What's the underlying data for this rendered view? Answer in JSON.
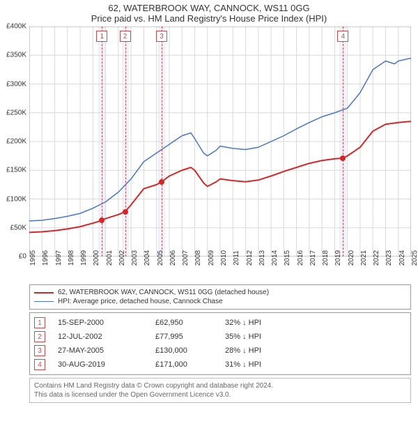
{
  "title1": "62, WATERBROOK WAY, CANNOCK, WS11 0GG",
  "title2": "Price paid vs. HM Land Registry's House Price Index (HPI)",
  "chart": {
    "type": "line",
    "background_color": "#ffffff",
    "grid_color": "#d9d9d9",
    "axis_color": "#999999",
    "label_fontsize": 10,
    "y_axis": {
      "min": 0,
      "max": 400000,
      "tick_step": 50000,
      "ticks": [
        "£0",
        "£50K",
        "£100K",
        "£150K",
        "£200K",
        "£250K",
        "£300K",
        "£350K",
        "£400K"
      ]
    },
    "x_axis": {
      "min": 1995,
      "max": 2025,
      "years": [
        1995,
        1996,
        1997,
        1998,
        1999,
        2000,
        2001,
        2002,
        2003,
        2004,
        2005,
        2006,
        2007,
        2008,
        2009,
        2010,
        2011,
        2012,
        2013,
        2014,
        2015,
        2016,
        2017,
        2018,
        2019,
        2020,
        2021,
        2022,
        2023,
        2024,
        2025
      ]
    },
    "band_color": "#eef3fb",
    "vline_color": "#d04a4a",
    "marker_box_border": "#d04a4a",
    "marker_box_text": "#d04a4a",
    "series": [
      {
        "name": "property",
        "label": "62, WATERBROOK WAY, CANNOCK, WS11 0GG (detached house)",
        "color": "#d62728",
        "line_width": 2,
        "dot_color": "#d62728",
        "points": [
          [
            1995.0,
            42000
          ],
          [
            1996.0,
            43000
          ],
          [
            1997.0,
            45000
          ],
          [
            1998.0,
            48000
          ],
          [
            1999.0,
            52000
          ],
          [
            2000.0,
            58000
          ],
          [
            2000.71,
            62950
          ],
          [
            2001.0,
            66000
          ],
          [
            2002.0,
            73000
          ],
          [
            2002.53,
            77995
          ],
          [
            2003.0,
            90000
          ],
          [
            2004.0,
            118000
          ],
          [
            2005.0,
            125000
          ],
          [
            2005.4,
            130000
          ],
          [
            2006.0,
            140000
          ],
          [
            2007.0,
            150000
          ],
          [
            2007.7,
            155000
          ],
          [
            2008.0,
            150000
          ],
          [
            2008.7,
            128000
          ],
          [
            2009.0,
            122000
          ],
          [
            2009.7,
            130000
          ],
          [
            2010.0,
            135000
          ],
          [
            2011.0,
            132000
          ],
          [
            2012.0,
            130000
          ],
          [
            2013.0,
            133000
          ],
          [
            2014.0,
            140000
          ],
          [
            2015.0,
            148000
          ],
          [
            2016.0,
            155000
          ],
          [
            2017.0,
            162000
          ],
          [
            2018.0,
            167000
          ],
          [
            2019.0,
            170000
          ],
          [
            2019.66,
            171000
          ],
          [
            2020.0,
            175000
          ],
          [
            2021.0,
            190000
          ],
          [
            2022.0,
            218000
          ],
          [
            2023.0,
            230000
          ],
          [
            2024.0,
            233000
          ],
          [
            2025.0,
            235000
          ]
        ]
      },
      {
        "name": "hpi",
        "label": "HPI: Average price, detached house, Cannock Chase",
        "color": "#4a74c9",
        "line_width": 1.5,
        "points": [
          [
            1995.0,
            62000
          ],
          [
            1996.0,
            63000
          ],
          [
            1997.0,
            66000
          ],
          [
            1998.0,
            70000
          ],
          [
            1999.0,
            75000
          ],
          [
            2000.0,
            84000
          ],
          [
            2001.0,
            95000
          ],
          [
            2002.0,
            112000
          ],
          [
            2003.0,
            135000
          ],
          [
            2004.0,
            165000
          ],
          [
            2005.0,
            180000
          ],
          [
            2006.0,
            195000
          ],
          [
            2007.0,
            210000
          ],
          [
            2007.7,
            215000
          ],
          [
            2008.0,
            205000
          ],
          [
            2008.7,
            180000
          ],
          [
            2009.0,
            175000
          ],
          [
            2009.7,
            185000
          ],
          [
            2010.0,
            192000
          ],
          [
            2011.0,
            188000
          ],
          [
            2012.0,
            186000
          ],
          [
            2013.0,
            190000
          ],
          [
            2014.0,
            200000
          ],
          [
            2015.0,
            210000
          ],
          [
            2016.0,
            222000
          ],
          [
            2017.0,
            233000
          ],
          [
            2018.0,
            243000
          ],
          [
            2019.0,
            250000
          ],
          [
            2020.0,
            258000
          ],
          [
            2021.0,
            285000
          ],
          [
            2022.0,
            325000
          ],
          [
            2023.0,
            340000
          ],
          [
            2023.7,
            335000
          ],
          [
            2024.0,
            340000
          ],
          [
            2025.0,
            345000
          ]
        ]
      }
    ],
    "sale_markers": [
      {
        "n": "1",
        "x": 2000.71,
        "price": 62950
      },
      {
        "n": "2",
        "x": 2002.53,
        "price": 77995
      },
      {
        "n": "3",
        "x": 2005.4,
        "price": 130000
      },
      {
        "n": "4",
        "x": 2019.66,
        "price": 171000
      }
    ]
  },
  "legend": {
    "rows": [
      {
        "color": "#d62728",
        "width": 2,
        "text": "62, WATERBROOK WAY, CANNOCK, WS11 0GG (detached house)"
      },
      {
        "color": "#4a74c9",
        "width": 1.5,
        "text": "HPI: Average price, detached house, Cannock Chase"
      }
    ]
  },
  "sales_table": {
    "rows": [
      {
        "n": "1",
        "date": "15-SEP-2000",
        "price": "£62,950",
        "pct": "32% ↓ HPI"
      },
      {
        "n": "2",
        "date": "12-JUL-2002",
        "price": "£77,995",
        "pct": "35% ↓ HPI"
      },
      {
        "n": "3",
        "date": "27-MAY-2005",
        "price": "£130,000",
        "pct": "28% ↓ HPI"
      },
      {
        "n": "4",
        "date": "30-AUG-2019",
        "price": "£171,000",
        "pct": "31% ↓ HPI"
      }
    ],
    "marker_border": "#d04a4a",
    "marker_text": "#d04a4a"
  },
  "licence": {
    "line1": "Contains HM Land Registry data © Crown copyright and database right 2024.",
    "line2": "This data is licensed under the Open Government Licence v3.0."
  }
}
